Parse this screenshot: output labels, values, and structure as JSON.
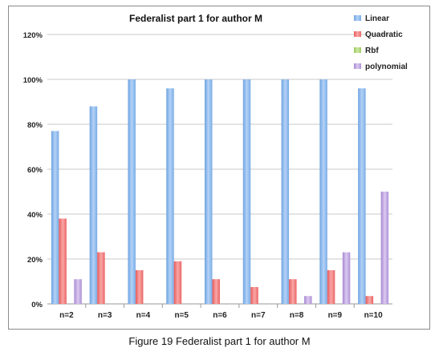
{
  "figure": {
    "caption": "Figure 19  Federalist part 1 for author M"
  },
  "chart_data": {
    "type": "bar",
    "title": "Federalist part 1 for author M",
    "xlabel": "",
    "ylabel": "",
    "categories": [
      "n=2",
      "n=3",
      "n=4",
      "n=5",
      "n=6",
      "n=7",
      "n=8",
      "n=9",
      "n=10"
    ],
    "series": [
      {
        "name": "Linear",
        "values": [
          77,
          88,
          100,
          96,
          100,
          100,
          100,
          100,
          96
        ],
        "color": "#7fb0e8"
      },
      {
        "name": "Quadratic",
        "values": [
          38,
          23,
          15,
          19,
          11,
          7.5,
          11,
          15,
          3.5
        ],
        "color": "#ef6b6b"
      },
      {
        "name": "Rbf",
        "values": [
          0,
          0,
          0,
          0,
          0,
          0,
          0,
          0,
          0
        ],
        "color": "#a6d36e"
      },
      {
        "name": "polynomial",
        "values": [
          11,
          0,
          0,
          0,
          0,
          0,
          3.5,
          23,
          50
        ],
        "color": "#b69ad9"
      }
    ],
    "ylim": [
      0,
      120
    ],
    "yticks": [
      0,
      20,
      40,
      60,
      80,
      100,
      120
    ],
    "ytick_labels": [
      "0%",
      "20%",
      "40%",
      "60%",
      "80%",
      "100%",
      "120%"
    ],
    "grid": true,
    "legend_position": "top-right"
  }
}
